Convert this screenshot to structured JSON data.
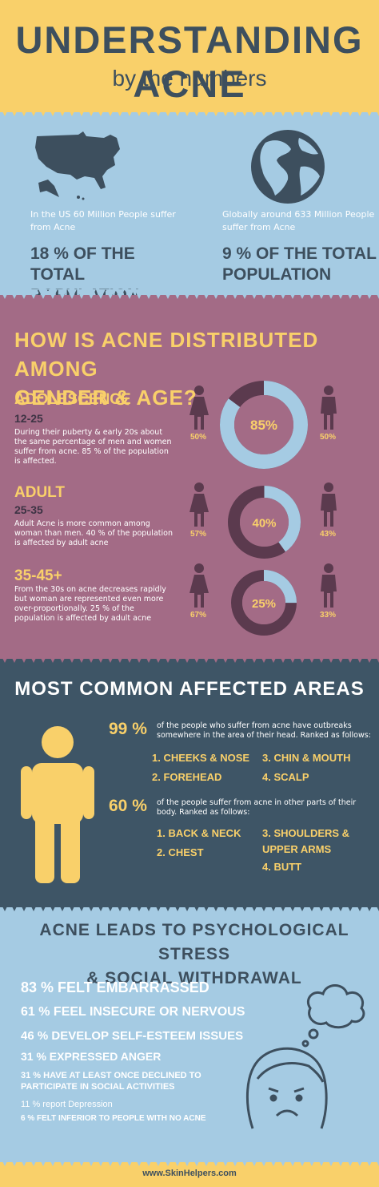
{
  "header": {
    "title": "UNDERSTANDING ACNE",
    "subtitle": "by the numbers"
  },
  "population": {
    "us": {
      "text": "In the US 60 Million People suffer from Acne",
      "stat_line1": "18 % OF THE TOTAL",
      "stat_line2": "POPULATION"
    },
    "global": {
      "text": "Globally around 633 Million People suffer from Acne",
      "stat_line1": "9 % OF THE TOTAL",
      "stat_line2": "POPULATION"
    }
  },
  "distribution": {
    "title_line1": "HOW IS ACNE DISTRIBUTED AMONG",
    "title_line2": "GENDER & AGE?",
    "groups": [
      {
        "title": "ADOLESCENCE",
        "age": "12-25",
        "desc": "During their puberty & early 20s about the same percentage of men and women suffer from acne. 85 % of the population is affected.",
        "center": "85%",
        "fraction": 0.85,
        "female": "50%",
        "male": "50%"
      },
      {
        "title": "ADULT",
        "age": "25-35",
        "desc": "Adult Acne is more common among woman than men. 40 % of the population is affected by adult acne",
        "center": "40%",
        "fraction": 0.4,
        "female": "57%",
        "male": "43%"
      },
      {
        "title": "35-45+",
        "age": "",
        "desc": "From the 30s on acne decreases rapidly but woman are represented even more over-proportionally. 25 % of the population is affected by adult acne",
        "center": "25%",
        "fraction": 0.25,
        "female": "67%",
        "male": "33%"
      }
    ]
  },
  "areas": {
    "title": "MOST COMMON AFFECTED AREAS",
    "head": {
      "pct": "99 %",
      "desc": "of the people who suffer from acne have outbreaks somewhere in the area of their head. Ranked as follows:",
      "items": [
        "1. CHEEKS & NOSE",
        "2. FOREHEAD",
        "3. CHIN & MOUTH",
        "4. SCALP"
      ]
    },
    "body": {
      "pct": "60 %",
      "desc": "of the people suffer from acne in other parts of their body. Ranked as follows:",
      "items": [
        "1. BACK & NECK",
        "2. CHEST",
        "3. SHOULDERS &",
        "UPPER ARMS",
        "4. BUTT"
      ]
    }
  },
  "stress": {
    "title_line1": "ACNE LEADS TO PSYCHOLOGICAL STRESS",
    "title_line2": "& SOCIAL WITHDRAWAL",
    "stats": [
      "83 % FELT EMBARRASSED",
      "61 % FEEL INSECURE OR NERVOUS",
      "46 % DEVELOP SELF-ESTEEM ISSUES",
      "31 % EXPRESSED ANGER",
      "31 % HAVE AT LEAST ONCE DECLINED TO",
      "PARTICIPATE IN SOCIAL ACTIVITIES",
      "11 % report Depression",
      "6 % FELT INFERIOR TO PEOPLE WITH NO ACNE"
    ]
  },
  "footer": {
    "text": "www.SkinHelpers.com"
  },
  "colors": {
    "yellow": "#f9d06a",
    "navy": "#3d4f5e",
    "lightblue": "#a5cbe3",
    "mauve": "#a36b86",
    "plum": "#5b3a4e",
    "slate": "#3e5566"
  }
}
